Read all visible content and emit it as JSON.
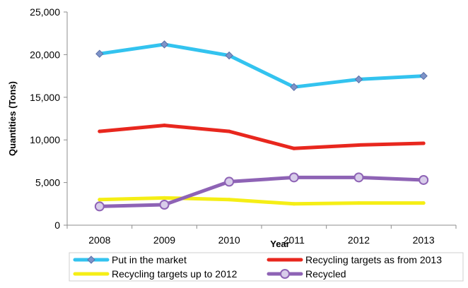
{
  "chart_data": {
    "type": "line",
    "x": [
      "2008",
      "2009",
      "2010",
      "2011",
      "2012",
      "2013"
    ],
    "xlabel": "Year",
    "ylabel": "Quantities (Tons)",
    "ylim": [
      0,
      25000
    ],
    "yticks": [
      "0",
      "5,000",
      "10,000",
      "15,000",
      "20,000",
      "25,000"
    ],
    "grid": false,
    "legend_position": "bottom",
    "series": [
      {
        "name": "Put in the market",
        "values": [
          20100,
          21200,
          19900,
          16200,
          17100,
          17500
        ],
        "color": "#33c3ef",
        "marker": "diamond"
      },
      {
        "name": "Recycling targets as from 2013",
        "values": [
          11000,
          11700,
          11000,
          9000,
          9400,
          9600
        ],
        "color": "#e8271e",
        "marker": "none"
      },
      {
        "name": "Recycling targets up to 2012",
        "values": [
          3000,
          3200,
          3000,
          2500,
          2600,
          2600
        ],
        "color": "#f5ee15",
        "marker": "none"
      },
      {
        "name": "Recycled",
        "values": [
          2200,
          2400,
          5100,
          5600,
          5600,
          5300
        ],
        "color": "#8e63b5",
        "marker": "circle"
      }
    ]
  }
}
